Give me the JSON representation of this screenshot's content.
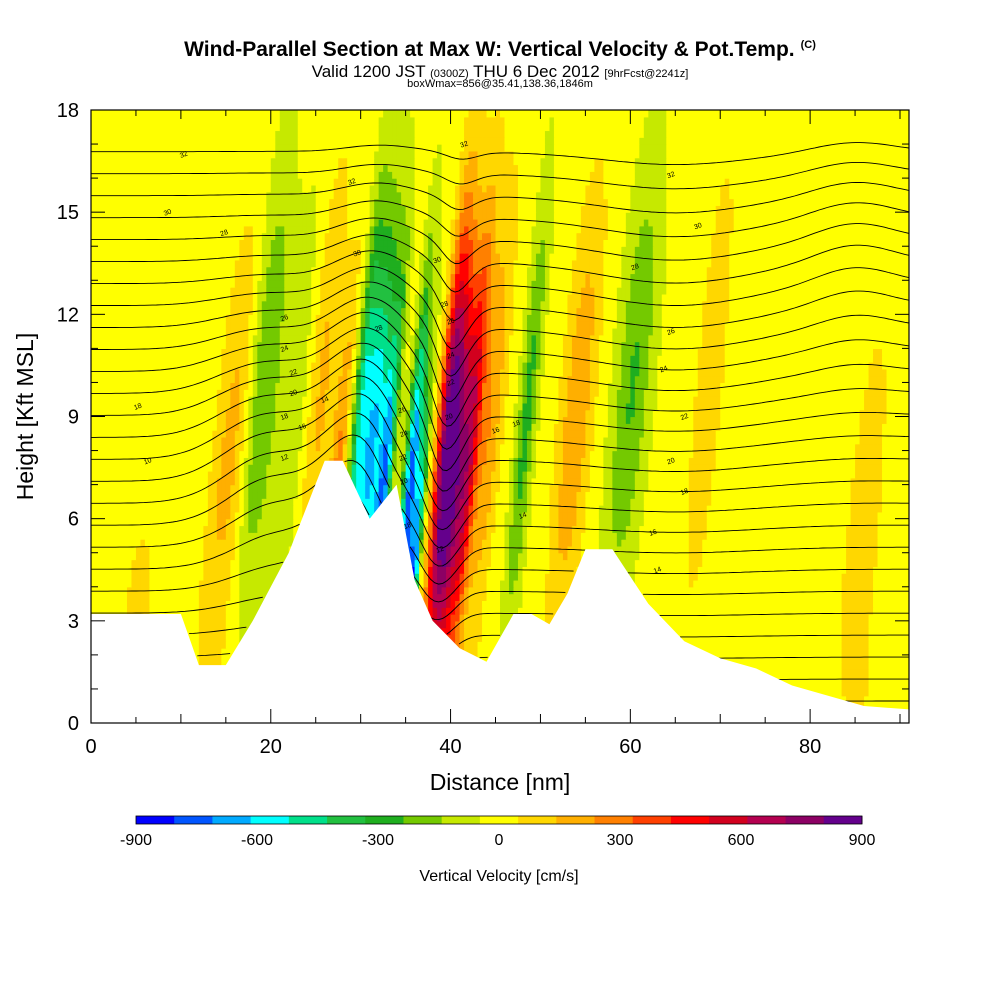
{
  "title": {
    "main": "Wind-Parallel Section at Max W: Vertical Velocity & Pot.Temp.",
    "main_mark": "(C)",
    "line2_a": "Valid 1200 JST",
    "line2_b": "(0300Z)",
    "line2_c": "THU 6 Dec 2012",
    "line2_d": "[9hrFcst@2241z]",
    "line3": "boxWmax=856@35.41,138.36,1846m"
  },
  "chart_data": {
    "type": "heatmap",
    "xlabel": "Distance [nm]",
    "ylabel": "Height [Kft MSL]",
    "xlim": [
      0,
      91
    ],
    "ylim": [
      0,
      18
    ],
    "x_ticks": [
      0,
      20,
      40,
      60,
      80
    ],
    "y_ticks": [
      0,
      3,
      6,
      9,
      12,
      15,
      18
    ],
    "colorbar": {
      "label": "Vertical Velocity [cm/s]",
      "ticks": [
        -900,
        -600,
        -300,
        0,
        300,
        600,
        900
      ],
      "colors": [
        "#0000ff",
        "#0055ff",
        "#00aaff",
        "#00ffff",
        "#00e08a",
        "#22c040",
        "#1fae1f",
        "#74c900",
        "#c6e900",
        "#ffff00",
        "#ffd700",
        "#ffaf00",
        "#ff8000",
        "#ff4000",
        "#ff0000",
        "#d2001e",
        "#b40050",
        "#8c0064",
        "#64008c"
      ]
    },
    "terrain": [
      [
        0,
        3.2
      ],
      [
        10,
        3.2
      ],
      [
        12,
        1.7
      ],
      [
        15,
        1.7
      ],
      [
        18,
        3.0
      ],
      [
        22,
        5.0
      ],
      [
        26,
        7.7
      ],
      [
        28,
        7.7
      ],
      [
        31,
        6.0
      ],
      [
        34,
        7.0
      ],
      [
        36,
        4.2
      ],
      [
        38,
        3.0
      ],
      [
        41,
        2.2
      ],
      [
        44,
        1.8
      ],
      [
        47,
        3.2
      ],
      [
        49,
        3.2
      ],
      [
        51,
        2.9
      ],
      [
        53,
        3.8
      ],
      [
        55,
        5.1
      ],
      [
        58,
        5.1
      ],
      [
        62,
        3.5
      ],
      [
        66,
        2.4
      ],
      [
        70,
        1.9
      ],
      [
        74,
        1.6
      ],
      [
        78,
        1.1
      ],
      [
        82,
        0.8
      ],
      [
        86,
        0.5
      ],
      [
        91,
        0.4
      ]
    ],
    "w_bands": [
      {
        "x": 12.5,
        "w": 0.7,
        "h": 1.5,
        "v": 80
      },
      {
        "x": 14.0,
        "w": 1.8,
        "h": 8.0,
        "v": 200
      },
      {
        "x": 17.0,
        "w": 1.8,
        "h": 10.0,
        "v": -250
      },
      {
        "x": 20.6,
        "w": 1.4,
        "h": 9.0,
        "v": -120
      },
      {
        "x": 23.5,
        "w": 1.5,
        "h": 10.0,
        "v": 180
      },
      {
        "x": 26.0,
        "w": 0.9,
        "h": 6.0,
        "v": 300
      },
      {
        "x": 28.0,
        "w": 0.9,
        "h": 9.0,
        "v": -420
      },
      {
        "x": 29.6,
        "w": 1.3,
        "h": 8.0,
        "v": -650
      },
      {
        "x": 31.3,
        "w": 0.8,
        "h": 6.0,
        "v": -700
      },
      {
        "x": 34.2,
        "w": 0.8,
        "h": 6.0,
        "v": -820
      },
      {
        "x": 35.4,
        "w": 0.6,
        "h": 2.0,
        "v": -900
      },
      {
        "x": 37.6,
        "w": 1.0,
        "h": 9.0,
        "v": 600
      },
      {
        "x": 38.8,
        "w": 1.2,
        "h": 7.0,
        "v": 856
      },
      {
        "x": 40.5,
        "w": 1.0,
        "h": 8.0,
        "v": 600
      },
      {
        "x": 42.5,
        "w": 1.3,
        "h": 9.0,
        "v": 250
      },
      {
        "x": 46.5,
        "w": 1.0,
        "h": 9.0,
        "v": -280
      },
      {
        "x": 52.0,
        "w": 1.8,
        "h": 9.0,
        "v": 250
      },
      {
        "x": 58.0,
        "w": 2.0,
        "h": 10.0,
        "v": -250
      },
      {
        "x": 66.5,
        "w": 1.5,
        "h": 10.0,
        "v": 150
      },
      {
        "x": 85.0,
        "w": 1.8,
        "h": 5.0,
        "v": 150
      },
      {
        "x": 5.0,
        "w": 2.5,
        "h": 2.0,
        "v": 80
      }
    ],
    "theta_levels": [
      8,
      9,
      10,
      11,
      12,
      13,
      14,
      15,
      16,
      17,
      18,
      19,
      20,
      21,
      22,
      23,
      24,
      25,
      26,
      27,
      28,
      29,
      30,
      31,
      32,
      33,
      34
    ],
    "contour_labels": [
      {
        "x": 10.3,
        "y": 16.7,
        "t": "32"
      },
      {
        "x": 8.5,
        "y": 15.0,
        "t": "30"
      },
      {
        "x": 14.8,
        "y": 14.4,
        "t": "28"
      },
      {
        "x": 21.5,
        "y": 11.9,
        "t": "26"
      },
      {
        "x": 21.5,
        "y": 11.0,
        "t": "24"
      },
      {
        "x": 22.5,
        "y": 10.3,
        "t": "22"
      },
      {
        "x": 22.5,
        "y": 9.7,
        "t": "20"
      },
      {
        "x": 21.5,
        "y": 9.0,
        "t": "18"
      },
      {
        "x": 23.5,
        "y": 8.7,
        "t": "16"
      },
      {
        "x": 26.0,
        "y": 9.5,
        "t": "14"
      },
      {
        "x": 21.5,
        "y": 7.8,
        "t": "12"
      },
      {
        "x": 5.2,
        "y": 9.3,
        "t": "18"
      },
      {
        "x": 6.3,
        "y": 7.7,
        "t": "10"
      },
      {
        "x": 29.0,
        "y": 15.9,
        "t": "32"
      },
      {
        "x": 29.6,
        "y": 13.8,
        "t": "30"
      },
      {
        "x": 32.0,
        "y": 11.6,
        "t": "28"
      },
      {
        "x": 34.6,
        "y": 9.2,
        "t": "26"
      },
      {
        "x": 34.8,
        "y": 8.5,
        "t": "24"
      },
      {
        "x": 34.7,
        "y": 7.8,
        "t": "22"
      },
      {
        "x": 34.8,
        "y": 7.1,
        "t": "20"
      },
      {
        "x": 35.2,
        "y": 5.8,
        "t": "18"
      },
      {
        "x": 38.5,
        "y": 13.6,
        "t": "30"
      },
      {
        "x": 39.3,
        "y": 12.3,
        "t": "28"
      },
      {
        "x": 40.0,
        "y": 11.8,
        "t": "26"
      },
      {
        "x": 40.0,
        "y": 10.8,
        "t": "24"
      },
      {
        "x": 40.0,
        "y": 10.0,
        "t": "22"
      },
      {
        "x": 39.8,
        "y": 9.0,
        "t": "20"
      },
      {
        "x": 41.5,
        "y": 17.0,
        "t": "32"
      },
      {
        "x": 38.8,
        "y": 5.1,
        "t": "12"
      },
      {
        "x": 45.0,
        "y": 8.6,
        "t": "16"
      },
      {
        "x": 47.3,
        "y": 8.8,
        "t": "18"
      },
      {
        "x": 48.0,
        "y": 6.1,
        "t": "14"
      },
      {
        "x": 64.5,
        "y": 16.1,
        "t": "32"
      },
      {
        "x": 67.5,
        "y": 14.6,
        "t": "30"
      },
      {
        "x": 60.5,
        "y": 13.4,
        "t": "28"
      },
      {
        "x": 64.5,
        "y": 11.5,
        "t": "26"
      },
      {
        "x": 63.7,
        "y": 10.4,
        "t": "24"
      },
      {
        "x": 66.0,
        "y": 9.0,
        "t": "22"
      },
      {
        "x": 64.5,
        "y": 7.7,
        "t": "20"
      },
      {
        "x": 66.0,
        "y": 6.8,
        "t": "18"
      },
      {
        "x": 62.5,
        "y": 5.6,
        "t": "16"
      },
      {
        "x": 63.0,
        "y": 4.5,
        "t": "14"
      }
    ]
  }
}
